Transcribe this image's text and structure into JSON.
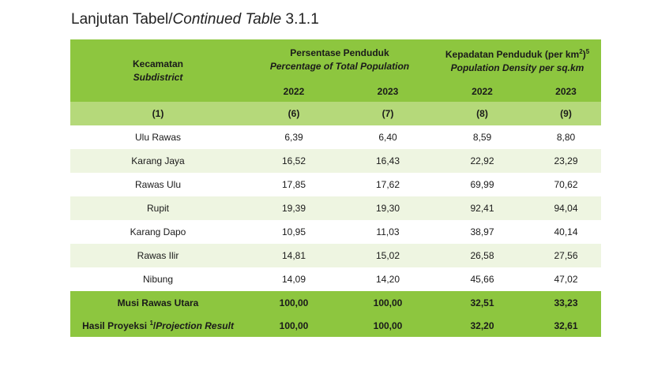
{
  "title": {
    "prefix": "Lanjutan Tabel/",
    "italic": "Continued Table",
    "suffix": " 3.1.1"
  },
  "header": {
    "col_subdistrict_id": "Kecamatan",
    "col_subdistrict_en": "Subdistrict",
    "group_percent_id": "Persentase Penduduk",
    "group_percent_en": "Percentage of Total Population",
    "group_density_id": "Kepadatan Penduduk (per km",
    "group_density_sup": "2",
    "group_density_close": ")",
    "group_density_footnote": "5",
    "group_density_en": "Population Density per sq.km",
    "years": [
      "2022",
      "2023",
      "2022",
      "2023"
    ],
    "col_numbers": [
      "(1)",
      "(6)",
      "(7)",
      "(8)",
      "(9)"
    ]
  },
  "rows": [
    {
      "name": "Ulu Rawas",
      "v": [
        "6,39",
        "6,40",
        "8,59",
        "8,80"
      ]
    },
    {
      "name": "Karang Jaya",
      "v": [
        "16,52",
        "16,43",
        "22,92",
        "23,29"
      ]
    },
    {
      "name": "Rawas Ulu",
      "v": [
        "17,85",
        "17,62",
        "69,99",
        "70,62"
      ]
    },
    {
      "name": "Rupit",
      "v": [
        "19,39",
        "19,30",
        "92,41",
        "94,04"
      ]
    },
    {
      "name": "Karang Dapo",
      "v": [
        "10,95",
        "11,03",
        "38,97",
        "40,14"
      ]
    },
    {
      "name": "Rawas Ilir",
      "v": [
        "14,81",
        "15,02",
        "26,58",
        "27,56"
      ]
    },
    {
      "name": "Nibung",
      "v": [
        "14,09",
        "14,20",
        "45,66",
        "47,02"
      ]
    }
  ],
  "total": {
    "name": "Musi Rawas Utara",
    "v": [
      "100,00",
      "100,00",
      "32,51",
      "33,23"
    ]
  },
  "projection": {
    "name_prefix": "Hasil Proyeksi ",
    "name_sup": "1",
    "name_slash": "/",
    "name_en": "Projection Result",
    "v": [
      "100,00",
      "100,00",
      "32,20",
      "32,61"
    ]
  }
}
